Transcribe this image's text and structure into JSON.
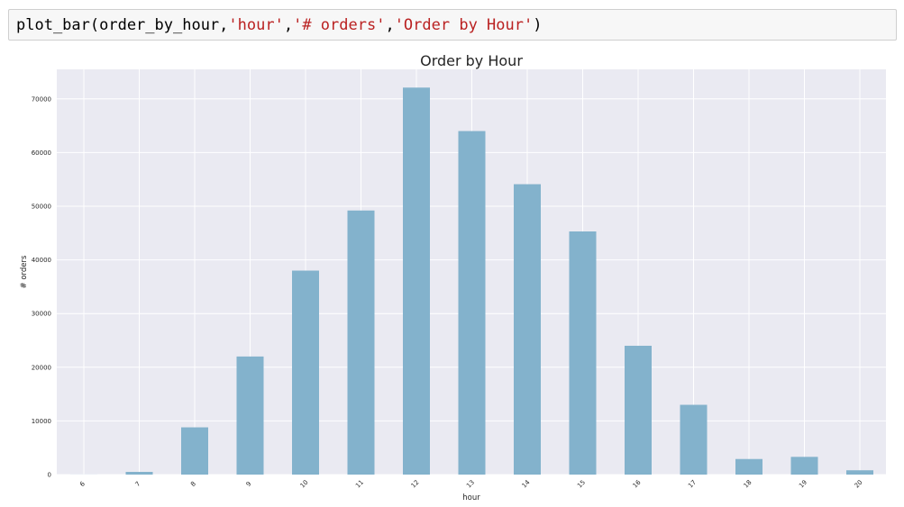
{
  "code_cell": {
    "fn": "plot_bar(order_by_hour,",
    "arg1": "'hour'",
    "sep1": ",",
    "arg2": "'# orders'",
    "sep2": ",",
    "arg3": "'Order by Hour'",
    "close": ")"
  },
  "colors": {
    "bar": "#83b2cc",
    "plot_bg": "#eaeaf2",
    "grid": "#ffffff"
  },
  "chart_data": {
    "type": "bar",
    "title": "Order by Hour",
    "xlabel": "hour",
    "ylabel": "# orders",
    "categories": [
      "6",
      "7",
      "8",
      "9",
      "10",
      "11",
      "12",
      "13",
      "14",
      "15",
      "16",
      "17",
      "18",
      "19",
      "20"
    ],
    "values": [
      10,
      500,
      8800,
      22000,
      38000,
      49200,
      72100,
      64000,
      54100,
      45300,
      24000,
      13000,
      2900,
      3300,
      800
    ],
    "ylim": [
      0,
      75500
    ],
    "yticks": [
      0,
      10000,
      20000,
      30000,
      40000,
      50000,
      60000,
      70000
    ],
    "grid": true,
    "legend": "none"
  }
}
